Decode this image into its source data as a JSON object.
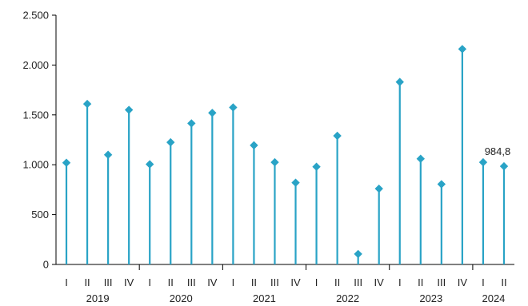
{
  "chart_data": {
    "type": "lollipop",
    "title": "",
    "xlabel": "",
    "ylabel": "",
    "ylim": [
      0,
      2500
    ],
    "yticks": [
      {
        "value": 0,
        "label": "0"
      },
      {
        "value": 500,
        "label": "500"
      },
      {
        "value": 1000,
        "label": "1.000"
      },
      {
        "value": 1500,
        "label": "1.500"
      },
      {
        "value": 2000,
        "label": "2.000"
      },
      {
        "value": 2500,
        "label": "2.500"
      }
    ],
    "grid": false,
    "legend": "none",
    "colors": {
      "stem": "#29a3c6",
      "marker": "#29a3c6",
      "axis": "#000000"
    },
    "categories": [
      "I",
      "II",
      "III",
      "IV",
      "I",
      "II",
      "III",
      "IV",
      "I",
      "II",
      "III",
      "IV",
      "I",
      "II",
      "III",
      "IV",
      "I",
      "II",
      "III",
      "IV",
      "I",
      "II"
    ],
    "years": [
      {
        "label": "2019",
        "count": 4
      },
      {
        "label": "2020",
        "count": 4
      },
      {
        "label": "2021",
        "count": 4
      },
      {
        "label": "2022",
        "count": 4
      },
      {
        "label": "2023",
        "count": 4
      },
      {
        "label": "2024",
        "count": 2
      }
    ],
    "values": [
      1020,
      1610,
      1100,
      1550,
      1005,
      1225,
      1415,
      1520,
      1575,
      1195,
      1025,
      820,
      980,
      1290,
      105,
      760,
      1830,
      1060,
      805,
      2160,
      1025,
      984.8
    ],
    "annotations": [
      {
        "index": 21,
        "text": "984,8"
      }
    ]
  }
}
